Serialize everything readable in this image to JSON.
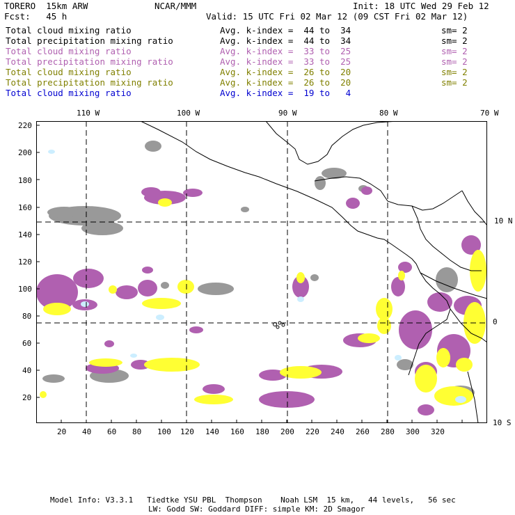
{
  "header": {
    "model": "TORERO  15km ARW",
    "org": "NCAR/MMM",
    "init": "Init: 18 UTC Wed 29 Feb 12",
    "fcst": "Fcst:   45 h",
    "valid": "Valid: 15 UTC Fri 02 Mar 12 (09 CST Fri 02 Mar 12)"
  },
  "legend": [
    {
      "field": "Total cloud mixing ratio",
      "k": "Avg. k-index =  44 to  34",
      "sm": "sm= 2",
      "color": "#000000"
    },
    {
      "field": "Total precipitation mixing ratio",
      "k": "Avg. k-index =  44 to  34",
      "sm": "sm= 2",
      "color": "#000000"
    },
    {
      "field": "Total cloud mixing ratio",
      "k": "Avg. k-index =  33 to  25",
      "sm": "sm= 2",
      "color": "#b060b0"
    },
    {
      "field": "Total precipitation mixing ratio",
      "k": "Avg. k-index =  33 to  25",
      "sm": "sm= 2",
      "color": "#b060b0"
    },
    {
      "field": "Total cloud mixing ratio",
      "k": "Avg. k-index =  26 to  20",
      "sm": "sm= 2",
      "color": "#808000"
    },
    {
      "field": "Total precipitation mixing ratio",
      "k": "Avg. k-index =  26 to  20",
      "sm": "sm= 2",
      "color": "#808000"
    },
    {
      "field": "Total cloud mixing ratio",
      "k": "Avg. k-index =  19 to   4",
      "sm": "",
      "color": "#0000d0"
    }
  ],
  "map": {
    "lon_labels": [
      "110 W",
      "100 W",
      "90 W",
      "80 W",
      "70 W"
    ],
    "lat_labels": [
      "10 N",
      "0",
      "10 S"
    ],
    "y_ticks": [
      "220",
      "200",
      "180",
      "160",
      "140",
      "120",
      "100",
      "80",
      "60",
      "40",
      "20"
    ],
    "x_ticks": [
      "20",
      "40",
      "60",
      "80",
      "100",
      "120",
      "140",
      "160",
      "180",
      "200",
      "220",
      "240",
      "260",
      "280",
      "300",
      "320"
    ],
    "colors": {
      "gray": "#999999",
      "purple": "#b060b0",
      "yellow": "#ffff33",
      "cyan": "#cceeff",
      "line": "#000000"
    }
  },
  "footer": {
    "line1": "Model Info: V3.3.1   Tiedtke YSU PBL  Thompson    Noah LSM  15 km,   44 levels,   56 sec",
    "line2": "LW: Godd SW: Goddard DIFF: simple KM: 2D Smagor"
  }
}
